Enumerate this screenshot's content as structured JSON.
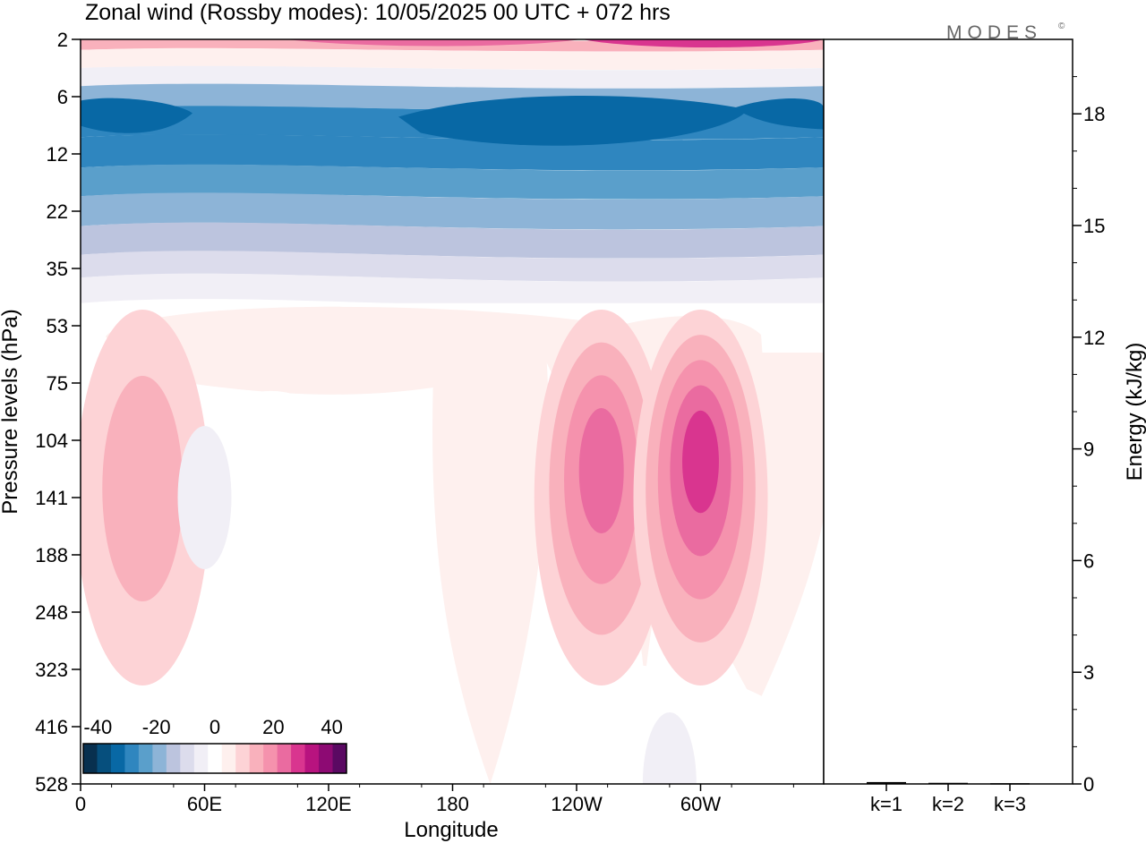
{
  "title": "Zonal wind (Rossby modes):  10/05/2025  00 UTC  + 072 hrs",
  "logo": "MODES",
  "logo_mark": "©",
  "chart_data": [
    {
      "type": "heatmap",
      "variable": "Zonal wind (Rossby modes)",
      "xlabel": "Longitude",
      "ylabel": "Pressure levels (hPa)",
      "x_ticks": [
        "0",
        "60E",
        "120E",
        "180",
        "120W",
        "60W"
      ],
      "y_ticks": [
        "2",
        "6",
        "12",
        "22",
        "35",
        "53",
        "75",
        "104",
        "141",
        "188",
        "248",
        "323",
        "416",
        "528"
      ],
      "y_axis_inverted": true,
      "colorbar": {
        "ticks": [
          "-40",
          "-20",
          "0",
          "20",
          "40"
        ],
        "range": [
          -45,
          45
        ],
        "levels": [
          -45,
          -40,
          -35,
          -30,
          -25,
          -20,
          -15,
          -10,
          -5,
          -2,
          2,
          5,
          10,
          15,
          20,
          25,
          30,
          35,
          40,
          45
        ],
        "colors": [
          "#08304f",
          "#064f7d",
          "#0868a5",
          "#2f86bf",
          "#5a9fcb",
          "#8db4d7",
          "#bcc4de",
          "#dcdcec",
          "#f1eff6",
          "#ffffff",
          "#fef0ee",
          "#fdd3d6",
          "#f9b1bc",
          "#f592ad",
          "#ea6ba0",
          "#d9358f",
          "#b8137f",
          "#8d0a73",
          "#5a0962"
        ]
      },
      "stratosphere_bands": [
        {
          "level": "2",
          "value": 12
        },
        {
          "level": "3",
          "value": 3
        },
        {
          "level": "4",
          "value": -3
        },
        {
          "level": "6",
          "value": -17
        },
        {
          "level": "8",
          "value": -28
        },
        {
          "level": "12",
          "value": -27
        },
        {
          "level": "16",
          "value": -22
        },
        {
          "level": "22",
          "value": -18
        },
        {
          "level": "28",
          "value": -12
        },
        {
          "level": "35",
          "value": -6
        },
        {
          "level": "40",
          "value": -3
        }
      ],
      "troposphere_features": [
        {
          "kind": "jet",
          "longitude": "108W",
          "level": "141",
          "value": 22
        },
        {
          "kind": "jet",
          "longitude": "60W",
          "level": "141",
          "value": 25
        },
        {
          "kind": "jet",
          "longitude": "30E",
          "level": "141",
          "value": 10
        },
        {
          "kind": "easterly",
          "longitude": "60E",
          "level": "141",
          "value": -4
        },
        {
          "kind": "easterly",
          "longitude": "75W",
          "level": "528",
          "value": -3
        }
      ]
    },
    {
      "type": "bar",
      "ylabel": "Energy (kJ/kg)",
      "categories": [
        "k=1",
        "k=2",
        "k=3"
      ],
      "values": [
        0.05,
        0.03,
        0.02
      ],
      "ylim": [
        0,
        20
      ],
      "y_ticks": [
        "0",
        "3",
        "6",
        "9",
        "12",
        "15",
        "18"
      ],
      "color": "#000000"
    }
  ]
}
